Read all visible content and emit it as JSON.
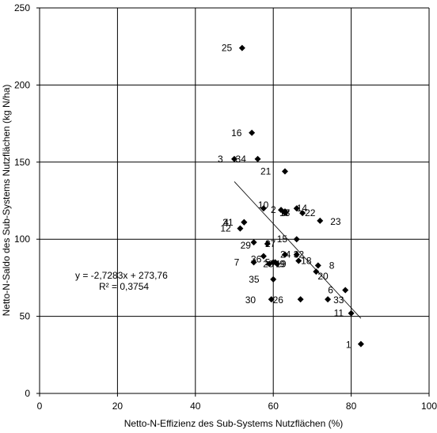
{
  "chart_data": {
    "type": "scatter",
    "xlabel": "Netto-N-Effizienz des Sub-Systems Nutzflächen (%)",
    "ylabel": "Netto-N-Saldo des Sub-Systems Nutzflächen (kg N/ha)",
    "xlim": [
      0,
      100
    ],
    "ylim": [
      0,
      250
    ],
    "x_ticks": [
      "0",
      "20",
      "40",
      "60",
      "80",
      "100"
    ],
    "y_ticks": [
      "0",
      "50",
      "100",
      "150",
      "200",
      "250"
    ],
    "grid": true,
    "legend": "none",
    "marker_color": "#000000",
    "points": [
      {
        "label": "1",
        "x": 82.5,
        "y": 32
      },
      {
        "label": "2",
        "x": 62.0,
        "y": 119
      },
      {
        "label": "3",
        "x": 50.0,
        "y": 152
      },
      {
        "label": "4",
        "x": 52.5,
        "y": 111
      },
      {
        "label": "5",
        "x": 60.5,
        "y": 85
      },
      {
        "label": "6",
        "x": 78.5,
        "y": 67
      },
      {
        "label": "7",
        "x": 55.0,
        "y": 85
      },
      {
        "label": "8",
        "x": 71.5,
        "y": 83
      },
      {
        "label": "9",
        "x": 61.0,
        "y": 84
      },
      {
        "label": "10",
        "x": 57.5,
        "y": 120
      },
      {
        "label": "11",
        "x": 80.0,
        "y": 52
      },
      {
        "label": "12",
        "x": 51.5,
        "y": 107
      },
      {
        "label": "13",
        "x": 63.0,
        "y": 118
      },
      {
        "label": "14",
        "x": 66.0,
        "y": 120
      },
      {
        "label": "15",
        "x": 66.0,
        "y": 100
      },
      {
        "label": "16",
        "x": 54.5,
        "y": 169
      },
      {
        "label": "17",
        "x": 63.0,
        "y": 117
      },
      {
        "label": "18",
        "x": 66.5,
        "y": 86
      },
      {
        "label": "19",
        "x": 60.0,
        "y": 85
      },
      {
        "label": "20",
        "x": 71.0,
        "y": 79
      },
      {
        "label": "21",
        "x": 63.0,
        "y": 144
      },
      {
        "label": "22",
        "x": 67.5,
        "y": 117
      },
      {
        "label": "23",
        "x": 72.0,
        "y": 112
      },
      {
        "label": "24",
        "x": 63.0,
        "y": 90
      },
      {
        "label": "25",
        "x": 52.0,
        "y": 224
      },
      {
        "label": "26",
        "x": 67.0,
        "y": 61
      },
      {
        "label": "27",
        "x": 58.5,
        "y": 97
      },
      {
        "label": "28",
        "x": 59.0,
        "y": 84
      },
      {
        "label": "29",
        "x": 55.0,
        "y": 98
      },
      {
        "label": "30",
        "x": 59.5,
        "y": 61
      },
      {
        "label": "31",
        "x": 52.5,
        "y": 111
      },
      {
        "label": "32",
        "x": 66.0,
        "y": 90
      },
      {
        "label": "33",
        "x": 74.0,
        "y": 61
      },
      {
        "label": "34",
        "x": 56.0,
        "y": 152
      },
      {
        "label": "35",
        "x": 60.0,
        "y": 74
      },
      {
        "label": "36",
        "x": 57.5,
        "y": 89
      }
    ],
    "trendline": {
      "slope": -2.7283,
      "intercept": 273.76,
      "x_range": [
        50,
        82.5
      ]
    },
    "annotations": {
      "equation": "y = -2,7283x + 273,76",
      "r_squared": "R² = 0,3754"
    }
  }
}
